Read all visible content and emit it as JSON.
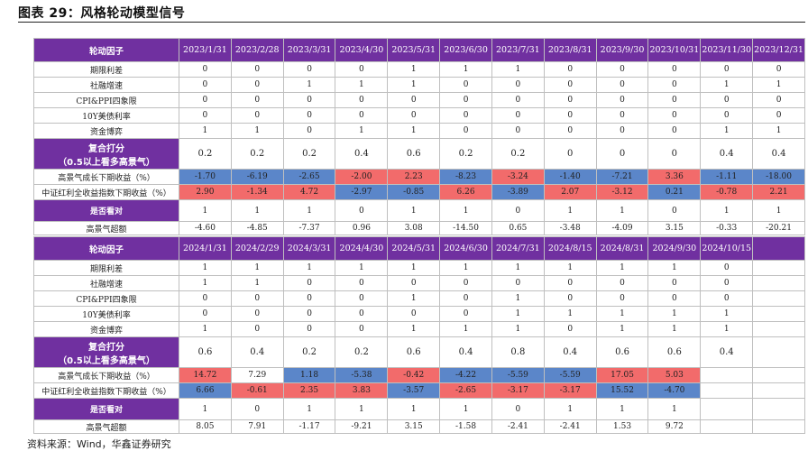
{
  "title": "图表 29：风格轮动模型信号",
  "tables": [
    {
      "header": [
        "轮动因子",
        "2023/1/31",
        "2023/2/28",
        "2023/3/31",
        "2023/4/30",
        "2023/5/31",
        "2023/6/30",
        "2023/7/31",
        "2023/8/31",
        "2023/9/30",
        "2023/10/31",
        "2023/11/30",
        "2023/12/31"
      ],
      "rows": [
        {
          "label": "期限利差",
          "values": [
            "0",
            "0",
            "0",
            "0",
            "1",
            "1",
            "1",
            "0",
            "0",
            "0",
            "0",
            "0"
          ]
        },
        {
          "label": "社融增速",
          "values": [
            "0",
            "0",
            "1",
            "1",
            "1",
            "0",
            "0",
            "0",
            "0",
            "0",
            "1",
            "1"
          ]
        },
        {
          "label": "CPI&PPI四象限",
          "values": [
            "0",
            "0",
            "0",
            "0",
            "0",
            "0",
            "0",
            "0",
            "0",
            "0",
            "0",
            "0"
          ]
        },
        {
          "label": "10Y美债利率",
          "values": [
            "0",
            "0",
            "0",
            "0",
            "0",
            "0",
            "0",
            "0",
            "0",
            "0",
            "0",
            "0"
          ]
        },
        {
          "label": "资金博弈",
          "values": [
            "1",
            "1",
            "0",
            "1",
            "1",
            "0",
            "0",
            "0",
            "0",
            "0",
            "1",
            "1"
          ]
        },
        {
          "label": "复合打分",
          "note": "（0.5以上看多高景气）",
          "values": [
            "0.2",
            "0.2",
            "0.2",
            "0.4",
            "0.6",
            "0.2",
            "0.2",
            "0",
            "0",
            "0",
            "0.4",
            "0.4"
          ]
        },
        {
          "label": "高景气成长下期收益（%）",
          "values": [
            "-1.70",
            "-6.19",
            "-2.65",
            "-2.00",
            "2.23",
            "-8.23",
            "-3.24",
            "-1.40",
            "-7.21",
            "3.36",
            "-1.11",
            "-18.00"
          ],
          "colors": [
            "#5b86c9",
            "#5b86c9",
            "#5b86c9",
            "#f26b6b",
            "#f26b6b",
            "#5b86c9",
            "#f26b6b",
            "#5b86c9",
            "#5b86c9",
            "#f26b6b",
            "#5b86c9",
            "#5b86c9"
          ]
        },
        {
          "label": "中证红利全收益指数下期收益（%）",
          "values": [
            "2.90",
            "-1.34",
            "4.72",
            "-2.97",
            "-0.85",
            "6.26",
            "-3.89",
            "2.07",
            "-3.12",
            "0.21",
            "-0.78",
            "2.21"
          ],
          "colors": [
            "#f26b6b",
            "#f26b6b",
            "#f26b6b",
            "#5b86c9",
            "#5b86c9",
            "#f26b6b",
            "#5b86c9",
            "#f26b6b",
            "#f26b6b",
            "#5b86c9",
            "#f26b6b",
            "#f26b6b"
          ]
        },
        {
          "label": "是否看对",
          "values": [
            "1",
            "1",
            "1",
            "0",
            "1",
            "1",
            "0",
            "1",
            "1",
            "0",
            "1",
            "1"
          ]
        },
        {
          "label": "高景气超额",
          "values": [
            "-4.60",
            "-4.85",
            "-7.37",
            "0.96",
            "3.08",
            "-14.50",
            "0.65",
            "-3.48",
            "-4.09",
            "3.15",
            "-0.33",
            "-20.21"
          ]
        }
      ]
    },
    {
      "header": [
        "轮动因子",
        "2024/1/31",
        "2024/2/29",
        "2024/3/31",
        "2024/4/30",
        "2024/5/31",
        "2024/6/30",
        "2024/7/31",
        "2024/8/15",
        "2024/8/31",
        "2024/9/30",
        "2024/10/15"
      ],
      "rows": [
        {
          "label": "期限利差",
          "values": [
            "1",
            "1",
            "1",
            "1",
            "1",
            "1",
            "1",
            "1",
            "1",
            "1",
            "0"
          ]
        },
        {
          "label": "社融增速",
          "values": [
            "1",
            "1",
            "0",
            "0",
            "0",
            "0",
            "0",
            "0",
            "0",
            "0",
            "0"
          ]
        },
        {
          "label": "CPI&PPI四象限",
          "values": [
            "0",
            "0",
            "0",
            "0",
            "1",
            "0",
            "1",
            "0",
            "0",
            "0",
            "0"
          ]
        },
        {
          "label": "10Y美债利率",
          "values": [
            "0",
            "0",
            "0",
            "0",
            "0",
            "0",
            "1",
            "1",
            "1",
            "1",
            "1"
          ]
        },
        {
          "label": "资金博弈",
          "values": [
            "1",
            "0",
            "0",
            "0",
            "1",
            "1",
            "1",
            "0",
            "1",
            "1",
            "1"
          ]
        },
        {
          "label": "复合打分",
          "note": "（0.5以上看多高景气）",
          "values": [
            "0.6",
            "0.4",
            "0.2",
            "0.2",
            "0.6",
            "0.4",
            "0.8",
            "0.4",
            "0.6",
            "0.6",
            "0.4"
          ]
        },
        {
          "label": "高景气成长下期收益（%）",
          "values": [
            "14.72",
            "7.29",
            "1.18",
            "-5.38",
            "-0.42",
            "-4.22",
            "-5.59",
            "-5.59",
            "17.05",
            "5.03"
          ],
          "colors": [
            "#f26b6b",
            "#ffffff",
            "#5b86c9",
            "#5b86c9",
            "#f26b6b",
            "#5b86c9",
            "#5b86c9",
            "#5b86c9",
            "#f26b6b",
            "#f26b6b"
          ]
        },
        {
          "label": "中证红利全收益指数下期收益（%）",
          "values": [
            "6.66",
            "-0.61",
            "2.35",
            "3.83",
            "-3.57",
            "-2.65",
            "-3.17",
            "-3.17",
            "15.52",
            "-4.70"
          ],
          "colors": [
            "#5b86c9",
            "#f26b6b",
            "#f26b6b",
            "#f26b6b",
            "#5b86c9",
            "#f26b6b",
            "#f26b6b",
            "#f26b6b",
            "#5b86c9",
            "#5b86c9"
          ]
        },
        {
          "label": "是否看对",
          "values": [
            "1",
            "0",
            "1",
            "1",
            "1",
            "1",
            "0",
            "1",
            "1",
            "1"
          ]
        },
        {
          "label": "高景气超额",
          "values": [
            "8.05",
            "7.91",
            "-1.17",
            "-9.21",
            "3.15",
            "-1.58",
            "-2.41",
            "-2.41",
            "1.53",
            "9.72"
          ]
        }
      ]
    }
  ],
  "source": "资料来源：Wind，华鑫证券研究"
}
